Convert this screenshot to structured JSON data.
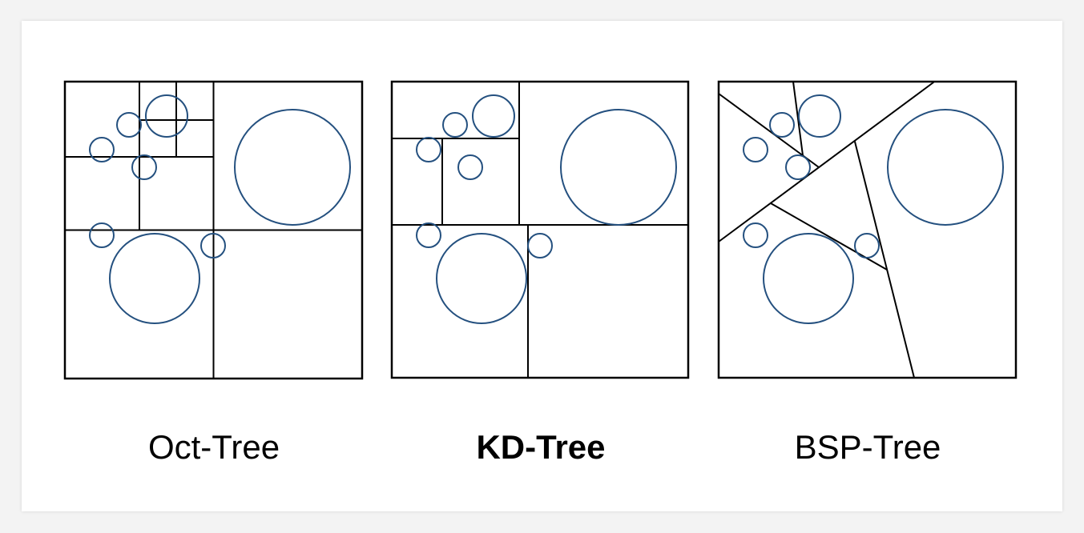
{
  "colors": {
    "partition_line": "#000000",
    "object_circle": "#24507f",
    "card_background": "#ffffff",
    "page_background": "#f3f3f3"
  },
  "panels": [
    {
      "id": "oct",
      "label": "Oct-Tree",
      "bold": false
    },
    {
      "id": "kd",
      "label": "KD-Tree",
      "bold": true
    },
    {
      "id": "bsp",
      "label": "BSP-Tree",
      "bold": false
    }
  ]
}
